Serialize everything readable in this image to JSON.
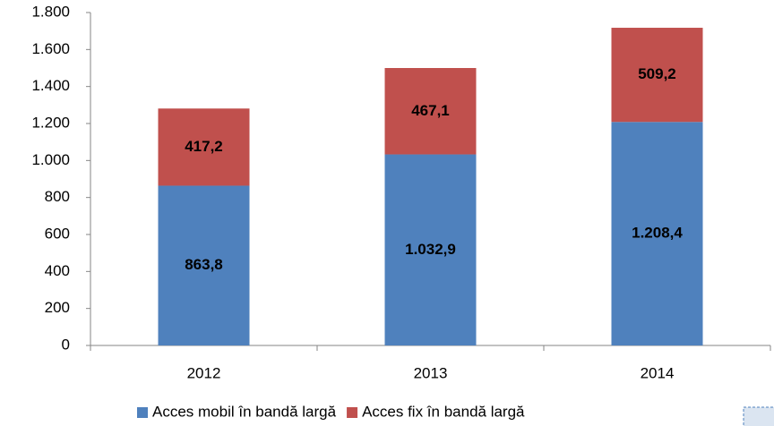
{
  "chart_data": {
    "type": "stacked_bar",
    "categories": [
      "2012",
      "2013",
      "2014"
    ],
    "series": [
      {
        "name": "Acces mobil în bandă largă",
        "color": "#4f81bd",
        "values": [
          863.8,
          1032.9,
          1208.4
        ],
        "value_labels": [
          "863,8",
          "1.032,9",
          "1.208,4"
        ]
      },
      {
        "name": "Acces fix în bandă largă",
        "color": "#c0504d",
        "values": [
          417.2,
          467.1,
          509.2
        ],
        "value_labels": [
          "417,2",
          "467,1",
          "509,2"
        ]
      }
    ],
    "ylim": [
      0,
      1800
    ],
    "yticks": [
      0,
      200,
      400,
      600,
      800,
      {
        "value": 1000,
        "label": "1.000"
      },
      {
        "value": 1200,
        "label": "1.200"
      },
      {
        "value": 1400,
        "label": "1.400"
      },
      {
        "value": 1600,
        "label": "1.600"
      },
      {
        "value": 1800,
        "label": "1.800"
      }
    ],
    "grid": false,
    "legend": "bottom"
  }
}
